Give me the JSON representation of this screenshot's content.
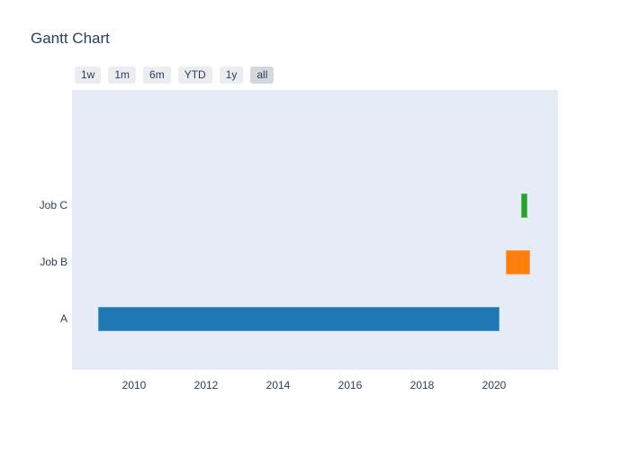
{
  "title": "Gantt Chart",
  "rangeselector": {
    "buttons": [
      {
        "label": "1w",
        "active": false
      },
      {
        "label": "1m",
        "active": false
      },
      {
        "label": "6m",
        "active": false
      },
      {
        "label": "YTD",
        "active": false
      },
      {
        "label": "1y",
        "active": false
      },
      {
        "label": "all",
        "active": true
      }
    ]
  },
  "colors": {
    "text": "#2a3f5f",
    "page_bg": "#ffffff",
    "plot_bg": "#e5ecf6",
    "button_bg": "#ebedf0",
    "button_active_bg": "#d5d8dd"
  },
  "chart_data": {
    "type": "bar",
    "subtype": "gantt-timeline",
    "title": "Gantt Chart",
    "orientation": "horizontal",
    "grid": false,
    "legend": false,
    "tasks": [
      {
        "label": "Job C",
        "start": "2020-10-01",
        "finish": "2020-12-01",
        "color": "#2ca02c"
      },
      {
        "label": "Job B",
        "start": "2020-05-01",
        "finish": "2021-01-01",
        "color": "#ff7f0e"
      },
      {
        "label": "A",
        "start": "2009-01-01",
        "finish": "2020-02-28",
        "color": "#1f77b4"
      }
    ],
    "x_ticks": [
      "2010",
      "2012",
      "2014",
      "2016",
      "2018",
      "2020"
    ],
    "x_range_years": [
      2008.275,
      2021.775
    ]
  }
}
